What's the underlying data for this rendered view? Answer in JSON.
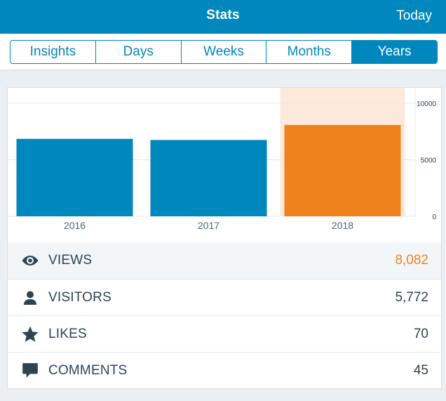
{
  "header": {
    "title": "Stats",
    "action_label": "Today"
  },
  "tabs": [
    {
      "label": "Insights",
      "active": false
    },
    {
      "label": "Days",
      "active": false
    },
    {
      "label": "Weeks",
      "active": false
    },
    {
      "label": "Months",
      "active": false
    },
    {
      "label": "Years",
      "active": true
    }
  ],
  "colors": {
    "accent": "#0087be",
    "highlight": "#f0821e",
    "highlight_bg": "#fde9d9",
    "text": "#2e4453"
  },
  "chart_data": {
    "type": "bar",
    "categories": [
      "2016",
      "2017",
      "2018"
    ],
    "values": [
      6850,
      6750,
      8082
    ],
    "selected_index": 2,
    "ylim": [
      0,
      10000
    ],
    "yticks": [
      0,
      5000,
      10000
    ],
    "ytick_labels": [
      "0",
      "5000",
      "10000"
    ],
    "grid": true
  },
  "stats": [
    {
      "icon": "eye-icon",
      "label": "VIEWS",
      "value": "8,082",
      "selected": true
    },
    {
      "icon": "person-icon",
      "label": "VISITORS",
      "value": "5,772",
      "selected": false
    },
    {
      "icon": "star-icon",
      "label": "LIKES",
      "value": "70",
      "selected": false
    },
    {
      "icon": "comment-icon",
      "label": "COMMENTS",
      "value": "45",
      "selected": false
    }
  ]
}
